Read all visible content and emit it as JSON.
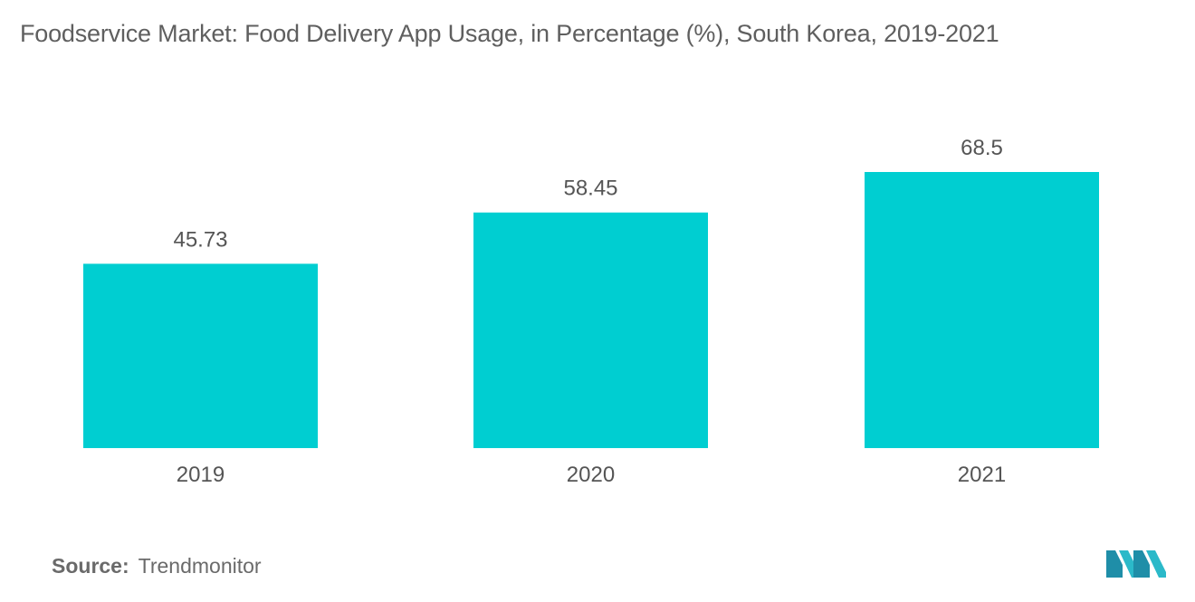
{
  "title": "Foodservice Market: Food Delivery App Usage, in Percentage (%), South Korea, 2019-2021",
  "source": {
    "label": "Source:",
    "value": "Trendmonitor"
  },
  "colors": {
    "bar": "#00CED1",
    "text": "#555555"
  },
  "chart_data": {
    "type": "bar",
    "title": "Foodservice Market: Food Delivery App Usage, in Percentage (%), South Korea, 2019-2021",
    "categories": [
      "2019",
      "2020",
      "2021"
    ],
    "values": [
      45.73,
      58.45,
      68.5
    ],
    "value_labels": [
      "45.73",
      "58.45",
      "68.5"
    ],
    "xlabel": "",
    "ylabel": "",
    "ylim": [
      0,
      68.5
    ],
    "grid": false,
    "legend": "none",
    "y_axis_visible": false
  },
  "logo": {
    "icon": "mordor-intelligence-logo-icon"
  }
}
